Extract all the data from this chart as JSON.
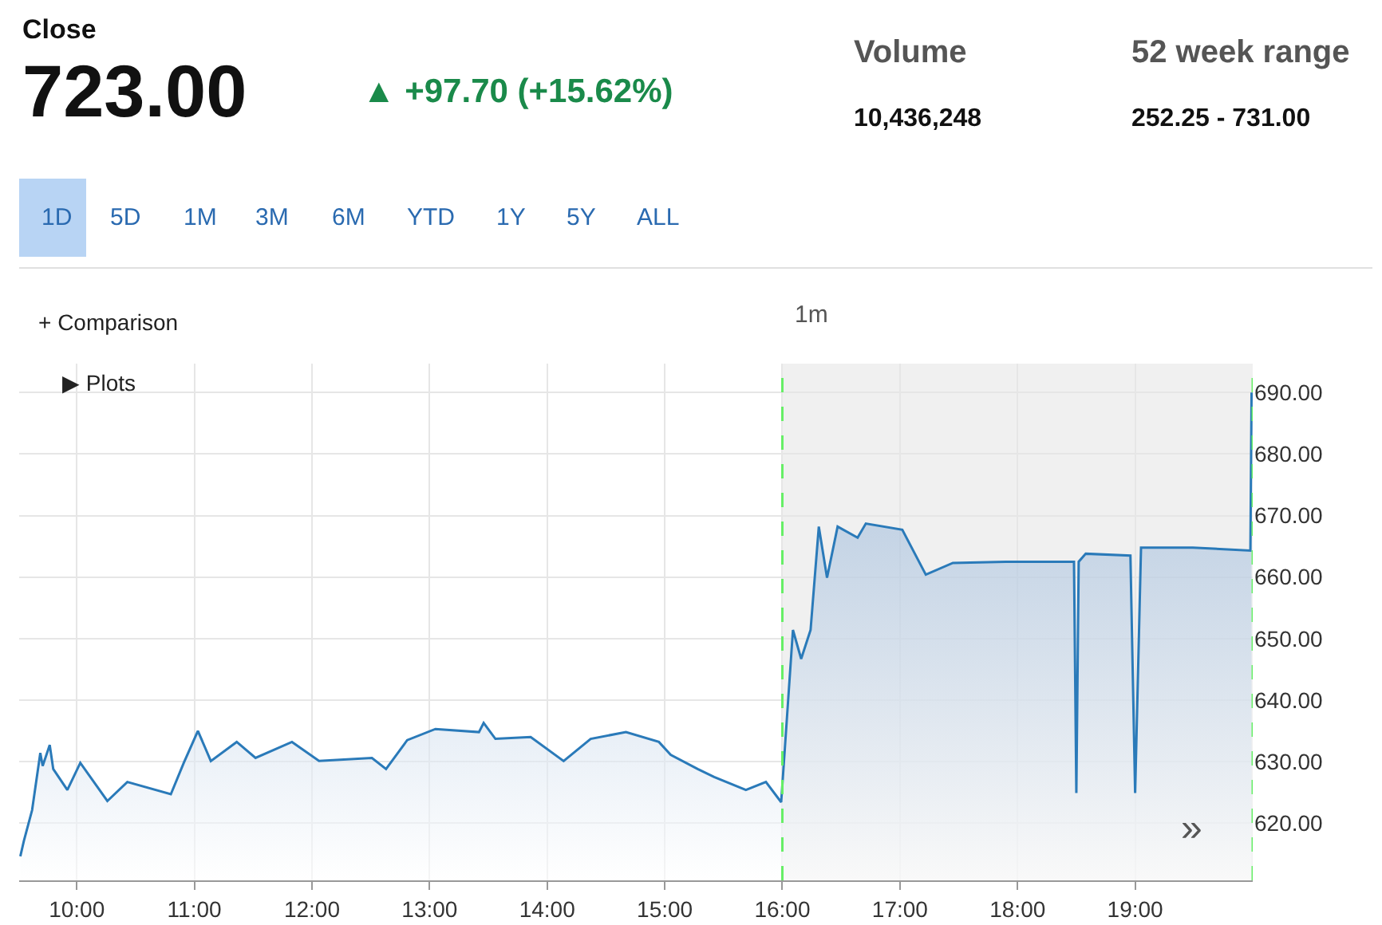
{
  "chart_data": {
    "type": "area",
    "title": "Close",
    "subtitle": "723.00",
    "annotations": [
      "▲ +97.70 (+15.62%)",
      "Volume",
      "10,436,248",
      "52 week range",
      "252.25 - 731.00",
      "1D",
      "5D",
      "1M",
      "3M",
      "6M",
      "YTD",
      "1Y",
      "5Y",
      "ALL",
      "+ Comparison",
      "1m",
      "▶ Plots",
      "»"
    ],
    "x": [
      9.52,
      9.55,
      9.62,
      9.69,
      9.71,
      9.77,
      9.8,
      9.92,
      10.03,
      10.26,
      10.43,
      10.8,
      10.91,
      11.03,
      11.14,
      11.36,
      11.52,
      11.83,
      12.06,
      12.51,
      12.63,
      12.81,
      13.05,
      13.42,
      13.46,
      13.56,
      13.86,
      14.14,
      14.37,
      14.67,
      14.95,
      15.05,
      15.28,
      15.42,
      15.69,
      15.86,
      15.99,
      16.09,
      16.16,
      16.24,
      16.31,
      16.38,
      16.47,
      16.64,
      16.71,
      17.02,
      17.22,
      17.45,
      17.9,
      18.48,
      18.5,
      18.52,
      18.58,
      18.96,
      19.0,
      19.05,
      19.49,
      19.98,
      19.99
    ],
    "series": [
      {
        "color": "#2a7ab9",
        "values": [
          614.6,
          617.1,
          622.1,
          631.4,
          629.3,
          632.7,
          628.8,
          625.4,
          629.8,
          623.6,
          626.7,
          624.7,
          629.8,
          635.0,
          630.1,
          633.2,
          630.6,
          633.2,
          630.1,
          630.6,
          628.8,
          633.5,
          635.3,
          634.8,
          636.3,
          633.7,
          634.0,
          630.1,
          633.7,
          634.8,
          633.2,
          631.1,
          628.8,
          627.5,
          625.4,
          626.7,
          623.4,
          651.4,
          646.7,
          651.4,
          668.2,
          659.9,
          668.2,
          666.4,
          668.7,
          667.7,
          660.4,
          662.3,
          662.5,
          662.5,
          624.9,
          662.5,
          663.8,
          663.5,
          624.9,
          664.8,
          664.8,
          664.3,
          690.0
        ]
      }
    ],
    "xlim": [
      9.51,
      20.0
    ],
    "xticks": [
      {
        "value": 10,
        "label": "10:00"
      },
      {
        "value": 11,
        "label": "11:00"
      },
      {
        "value": 12,
        "label": "12:00"
      },
      {
        "value": 13,
        "label": "13:00"
      },
      {
        "value": 14,
        "label": "14:00"
      },
      {
        "value": 15,
        "label": "15:00"
      },
      {
        "value": 16,
        "label": "16:00"
      },
      {
        "value": 17,
        "label": "17:00"
      },
      {
        "value": 18,
        "label": "18:00"
      },
      {
        "value": 19,
        "label": "19:00"
      }
    ],
    "ylim": [
      610.7,
      694.7
    ],
    "yticks": [
      {
        "value": 620,
        "label": "620.00"
      },
      {
        "value": 630,
        "label": "630.00"
      },
      {
        "value": 640,
        "label": "640.00"
      },
      {
        "value": 650,
        "label": "650.00"
      },
      {
        "value": 660,
        "label": "660.00"
      },
      {
        "value": 670,
        "label": "670.00"
      },
      {
        "value": 680,
        "label": "680.00"
      },
      {
        "value": 690,
        "label": "690.00"
      }
    ],
    "ref_lines": [
      {
        "axis": "x",
        "value": 16.0,
        "color": "#66ee66",
        "line_style": "dashed"
      },
      {
        "axis": "x",
        "value": 20.0,
        "color": "#66ee66",
        "line_style": "dashed"
      }
    ],
    "bands": [
      {
        "axis": "x",
        "from": 16.0,
        "to": 20.0,
        "color": "#f0f0f0"
      }
    ],
    "grid": true,
    "legend": false,
    "marker": "none",
    "line_style": "solid"
  }
}
